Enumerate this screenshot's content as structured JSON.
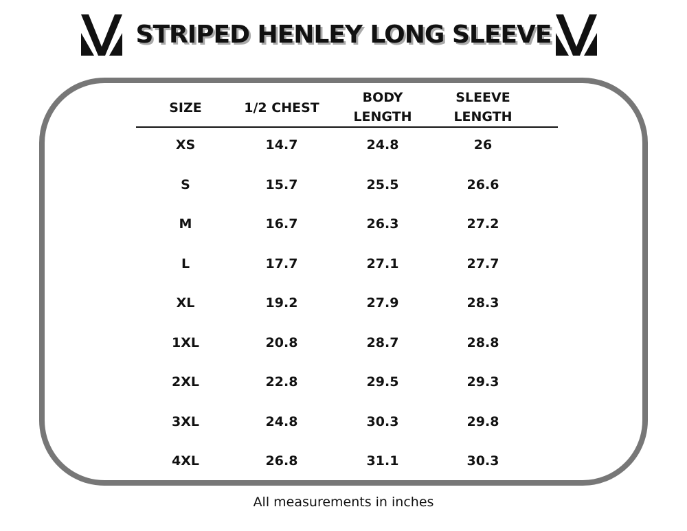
{
  "header": {
    "title": "STRIPED HENLEY LONG SLEEVE"
  },
  "table": {
    "columns": [
      "SIZE",
      "1/2 CHEST",
      "BODY LENGTH",
      "SLEEVE LENGTH"
    ],
    "rows": [
      [
        "XS",
        "14.7",
        "24.8",
        "26"
      ],
      [
        "S",
        "15.7",
        "25.5",
        "26.6"
      ],
      [
        "M",
        "16.7",
        "26.3",
        "27.2"
      ],
      [
        "L",
        "17.7",
        "27.1",
        "27.7"
      ],
      [
        "XL",
        "19.2",
        "27.9",
        "28.3"
      ],
      [
        "1XL",
        "20.8",
        "28.7",
        "28.8"
      ],
      [
        "2XL",
        "22.8",
        "29.5",
        "29.3"
      ],
      [
        "3XL",
        "24.8",
        "30.3",
        "29.8"
      ],
      [
        "4XL",
        "26.8",
        "31.1",
        "30.3"
      ]
    ]
  },
  "footer": {
    "note": "All measurements in inches"
  }
}
